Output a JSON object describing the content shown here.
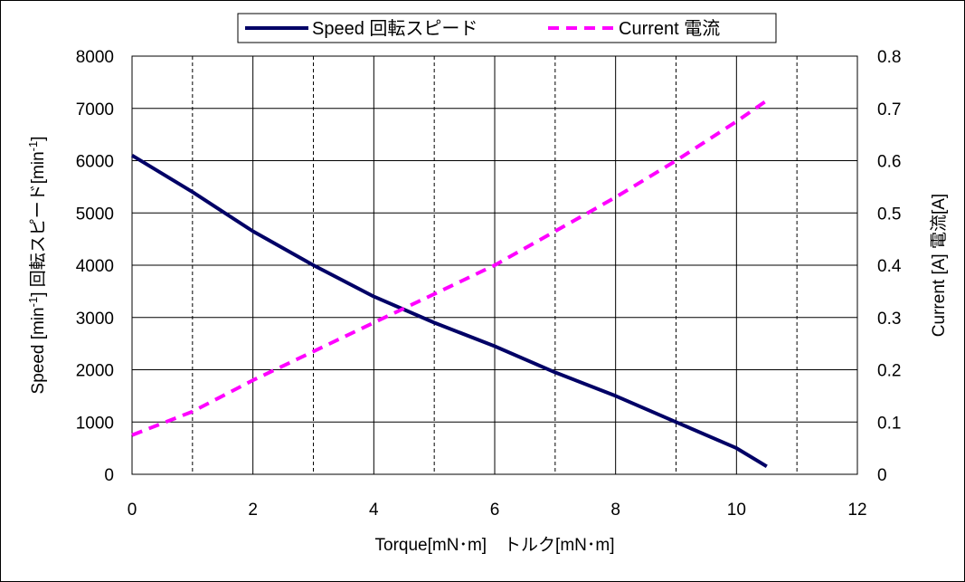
{
  "chart_data": {
    "type": "line",
    "xlabel": "Torque[mN･m]　トルク[mN･m]",
    "ylabel": "Speed [min-1]  回転スピード[min-1]",
    "ylabel_parts": {
      "pre": "Speed [min",
      "sup1": "-1",
      "mid": "]  回転スピード[min",
      "sup2": "-1",
      "post": "]"
    },
    "y2label": "Current [A]  電流[A]",
    "xlim": [
      0,
      12
    ],
    "ylim": [
      0,
      8000
    ],
    "y2lim": [
      0,
      0.8
    ],
    "x_ticks": [
      "0",
      "2",
      "4",
      "6",
      "8",
      "10",
      "12"
    ],
    "y_ticks": [
      "0",
      "1000",
      "2000",
      "3000",
      "4000",
      "5000",
      "6000",
      "7000",
      "8000"
    ],
    "y2_ticks": [
      "0",
      "0.1",
      "0.2",
      "0.3",
      "0.4",
      "0.5",
      "0.6",
      "0.7",
      "0.8"
    ],
    "grid": true,
    "legend_position": "top-center",
    "series": [
      {
        "name": "Speed 回転スピード",
        "axis": "left",
        "color": "#000066",
        "style": "solid",
        "x": [
          0,
          1,
          2,
          3,
          4,
          5,
          6,
          7,
          8,
          9,
          10,
          10.5
        ],
        "y": [
          6100,
          5400,
          4650,
          4000,
          3400,
          2900,
          2450,
          1950,
          1500,
          1000,
          500,
          150
        ]
      },
      {
        "name": "Current 電流",
        "axis": "right",
        "color": "#ff00ff",
        "style": "dashed",
        "x": [
          0,
          1,
          2,
          3,
          4,
          5,
          6,
          7,
          8,
          9,
          10,
          10.5
        ],
        "y": [
          0.075,
          0.12,
          0.18,
          0.235,
          0.29,
          0.345,
          0.4,
          0.465,
          0.53,
          0.6,
          0.675,
          0.715
        ]
      }
    ]
  }
}
